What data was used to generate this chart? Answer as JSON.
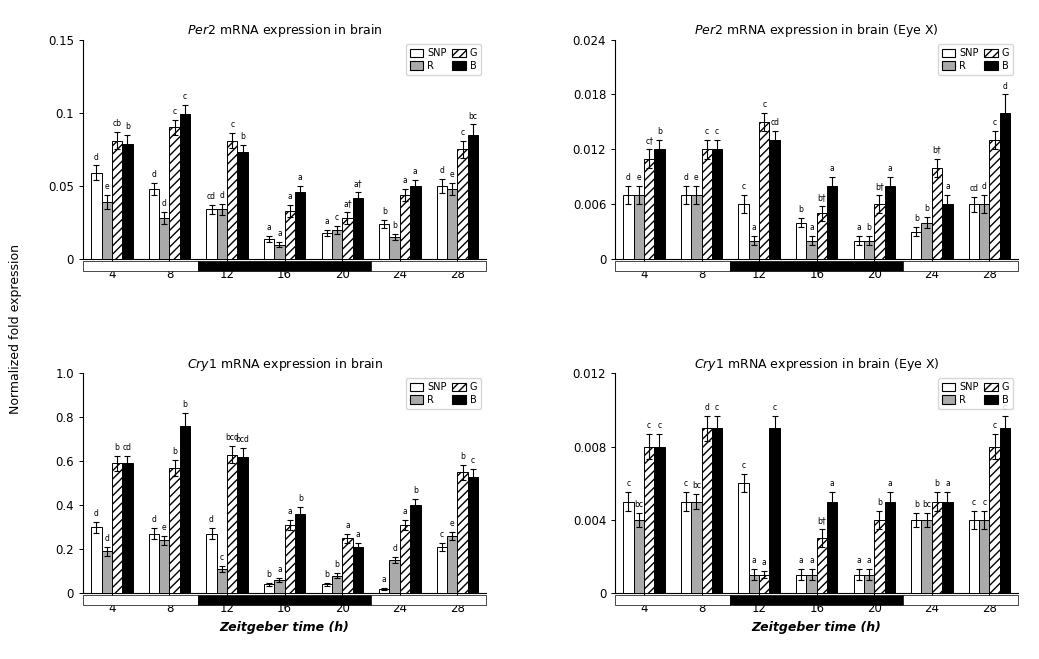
{
  "zeitgeber": [
    4,
    8,
    12,
    16,
    20,
    24,
    28
  ],
  "per2_brain": {
    "title": "Per2 mRNA expression in brain",
    "ylim": [
      0,
      0.15
    ],
    "yticks": [
      0,
      0.05,
      0.1,
      0.15
    ],
    "SNP": [
      0.059,
      0.048,
      0.034,
      0.014,
      0.018,
      0.024,
      0.05
    ],
    "R": [
      0.039,
      0.028,
      0.034,
      0.01,
      0.02,
      0.015,
      0.048
    ],
    "G": [
      0.081,
      0.09,
      0.081,
      0.033,
      0.028,
      0.044,
      0.075
    ],
    "B": [
      0.079,
      0.099,
      0.073,
      0.046,
      0.042,
      0.05,
      0.085
    ],
    "SNP_err": [
      0.005,
      0.004,
      0.003,
      0.002,
      0.002,
      0.003,
      0.005
    ],
    "R_err": [
      0.005,
      0.004,
      0.004,
      0.002,
      0.003,
      0.002,
      0.004
    ],
    "G_err": [
      0.006,
      0.005,
      0.005,
      0.004,
      0.004,
      0.004,
      0.006
    ],
    "B_err": [
      0.006,
      0.006,
      0.005,
      0.004,
      0.004,
      0.004,
      0.007
    ],
    "SNP_labels": [
      "d",
      "d",
      "cd",
      "a",
      "a",
      "b",
      "d"
    ],
    "R_labels": [
      "e",
      "d",
      "d",
      "a",
      "c",
      "b",
      "e"
    ],
    "G_labels": [
      "cb",
      "c",
      "c",
      "a",
      "a†",
      "a",
      "c"
    ],
    "B_labels": [
      "b",
      "c",
      "b",
      "a",
      "a†",
      "a",
      "bc"
    ]
  },
  "per2_brain_eyex": {
    "title": "Per2 mRNA expression in brain (Eye X)",
    "ylim": [
      0,
      0.024
    ],
    "yticks": [
      0,
      0.006,
      0.012,
      0.018,
      0.024
    ],
    "SNP": [
      0.007,
      0.007,
      0.006,
      0.004,
      0.002,
      0.003,
      0.006
    ],
    "R": [
      0.007,
      0.007,
      0.002,
      0.002,
      0.002,
      0.004,
      0.006
    ],
    "G": [
      0.011,
      0.012,
      0.015,
      0.005,
      0.006,
      0.01,
      0.013
    ],
    "B": [
      0.012,
      0.012,
      0.013,
      0.008,
      0.008,
      0.006,
      0.016
    ],
    "SNP_err": [
      0.001,
      0.001,
      0.001,
      0.0005,
      0.0005,
      0.0005,
      0.0008
    ],
    "R_err": [
      0.001,
      0.001,
      0.0005,
      0.0005,
      0.0005,
      0.0006,
      0.001
    ],
    "G_err": [
      0.001,
      0.001,
      0.001,
      0.0008,
      0.001,
      0.001,
      0.001
    ],
    "B_err": [
      0.001,
      0.001,
      0.001,
      0.001,
      0.001,
      0.001,
      0.002
    ],
    "SNP_labels": [
      "d",
      "d",
      "c",
      "b",
      "a",
      "b",
      "cd"
    ],
    "R_labels": [
      "e",
      "e",
      "a",
      "a",
      "b",
      "b",
      "d"
    ],
    "G_labels": [
      "c†",
      "c",
      "c",
      "b†",
      "b†",
      "b†",
      "c"
    ],
    "B_labels": [
      "b",
      "c",
      "cd",
      "a",
      "a",
      "a",
      "d"
    ]
  },
  "cry1_brain": {
    "title": "Cry1 mRNA expression in brain",
    "ylim": [
      0,
      1.0
    ],
    "yticks": [
      0,
      0.2,
      0.4,
      0.6,
      0.8,
      1.0
    ],
    "SNP": [
      0.3,
      0.27,
      0.27,
      0.04,
      0.04,
      0.02,
      0.21
    ],
    "R": [
      0.19,
      0.24,
      0.11,
      0.06,
      0.08,
      0.15,
      0.26
    ],
    "G": [
      0.59,
      0.57,
      0.63,
      0.31,
      0.25,
      0.31,
      0.55
    ],
    "B": [
      0.59,
      0.76,
      0.62,
      0.36,
      0.21,
      0.4,
      0.53
    ],
    "SNP_err": [
      0.025,
      0.025,
      0.025,
      0.008,
      0.008,
      0.005,
      0.02
    ],
    "R_err": [
      0.02,
      0.02,
      0.015,
      0.01,
      0.01,
      0.015,
      0.02
    ],
    "G_err": [
      0.035,
      0.035,
      0.04,
      0.025,
      0.02,
      0.025,
      0.035
    ],
    "B_err": [
      0.035,
      0.06,
      0.04,
      0.03,
      0.02,
      0.03,
      0.035
    ],
    "SNP_labels": [
      "d",
      "d",
      "d",
      "b",
      "b",
      "a",
      "c"
    ],
    "R_labels": [
      "d",
      "e",
      "c",
      "a",
      "b",
      "d",
      "e"
    ],
    "G_labels": [
      "b",
      "b",
      "bcd",
      "a",
      "a",
      "a",
      "b"
    ],
    "B_labels": [
      "cd",
      "b",
      "bcd",
      "b",
      "a",
      "b",
      "c"
    ]
  },
  "cry1_brain_eyex": {
    "title": "Cry1 mRNA expression in brain (Eye X)",
    "ylim": [
      0,
      0.012
    ],
    "yticks": [
      0,
      0.004,
      0.008,
      0.012
    ],
    "SNP": [
      0.005,
      0.005,
      0.006,
      0.001,
      0.001,
      0.004,
      0.004
    ],
    "R": [
      0.004,
      0.005,
      0.001,
      0.001,
      0.001,
      0.004,
      0.004
    ],
    "G": [
      0.008,
      0.009,
      0.001,
      0.003,
      0.004,
      0.005,
      0.008
    ],
    "B": [
      0.008,
      0.009,
      0.009,
      0.005,
      0.005,
      0.005,
      0.009
    ],
    "SNP_err": [
      0.0005,
      0.0005,
      0.0005,
      0.0003,
      0.0003,
      0.0004,
      0.0005
    ],
    "R_err": [
      0.0004,
      0.0004,
      0.0003,
      0.0003,
      0.0003,
      0.0004,
      0.0005
    ],
    "G_err": [
      0.0007,
      0.0007,
      0.0002,
      0.0005,
      0.0005,
      0.0005,
      0.0007
    ],
    "B_err": [
      0.0007,
      0.0007,
      0.0007,
      0.0005,
      0.0005,
      0.0005,
      0.0007
    ],
    "SNP_labels": [
      "c",
      "c",
      "c",
      "a",
      "a",
      "b",
      "c"
    ],
    "R_labels": [
      "bc",
      "bc",
      "a",
      "a",
      "a",
      "bc",
      "c"
    ],
    "G_labels": [
      "c",
      "d",
      "a",
      "b†",
      "b",
      "b",
      "c"
    ],
    "B_labels": [
      "c",
      "c",
      "c",
      "a",
      "a",
      "a",
      "c"
    ]
  },
  "bar_colors": {
    "SNP": "white",
    "R": "#aaaaaa",
    "G": "white",
    "B": "black"
  },
  "hatch": {
    "SNP": "",
    "R": "",
    "G": "////",
    "B": ""
  },
  "ylabel": "Normalized fold expression",
  "xlabel": "Zeitgeber time (h)"
}
